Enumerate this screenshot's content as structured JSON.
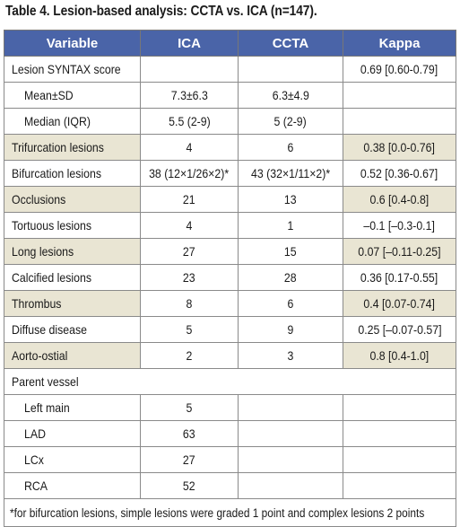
{
  "caption": "Table 4. Lesion-based analysis: CCTA vs. ICA (n=147).",
  "headers": [
    "Variable",
    "ICA",
    "CCTA",
    "Kappa"
  ],
  "rows": [
    {
      "variable": "Lesion SYNTAX score",
      "ica": "",
      "ccta": "",
      "kappa": "0.69 [0.60-0.79]",
      "indent": false,
      "shaded": false
    },
    {
      "variable": "Mean±SD",
      "ica": "7.3±6.3",
      "ccta": "6.3±4.9",
      "kappa": "",
      "indent": true,
      "shaded": false
    },
    {
      "variable": "Median (IQR)",
      "ica": "5.5 (2-9)",
      "ccta": "5 (2-9)",
      "kappa": "",
      "indent": true,
      "shaded": false
    },
    {
      "variable": "Trifurcation lesions",
      "ica": "4",
      "ccta": "6",
      "kappa": "0.38 [0.0-0.76]",
      "indent": false,
      "shaded": true
    },
    {
      "variable": "Bifurcation lesions",
      "ica": "38 (12×1/26×2)*",
      "ccta": "43 (32×1/11×2)*",
      "kappa": "0.52 [0.36-0.67]",
      "indent": false,
      "shaded": false
    },
    {
      "variable": "Occlusions",
      "ica": "21",
      "ccta": "13",
      "kappa": "0.6 [0.4-0.8]",
      "indent": false,
      "shaded": true
    },
    {
      "variable": "Tortuous lesions",
      "ica": "4",
      "ccta": "1",
      "kappa": "–0.1 [–0.3-0.1]",
      "indent": false,
      "shaded": false
    },
    {
      "variable": "Long lesions",
      "ica": "27",
      "ccta": "15",
      "kappa": "0.07 [–0.11-0.25]",
      "indent": false,
      "shaded": true
    },
    {
      "variable": "Calcified lesions",
      "ica": "23",
      "ccta": "28",
      "kappa": "0.36 [0.17-0.55]",
      "indent": false,
      "shaded": false
    },
    {
      "variable": "Thrombus",
      "ica": "8",
      "ccta": "6",
      "kappa": "0.4 [0.07-0.74]",
      "indent": false,
      "shaded": true
    },
    {
      "variable": "Diffuse disease",
      "ica": "5",
      "ccta": "9",
      "kappa": "0.25 [–0.07-0.57]",
      "indent": false,
      "shaded": false
    },
    {
      "variable": "Aorto-ostial",
      "ica": "2",
      "ccta": "3",
      "kappa": "0.8 [0.4-1.0]",
      "indent": false,
      "shaded": true
    },
    {
      "variable": "Parent vessel",
      "ica": "",
      "ccta": "",
      "kappa": "",
      "indent": false,
      "shaded": false,
      "span": true
    },
    {
      "variable": "Left main",
      "ica": "5",
      "ccta": "",
      "kappa": "",
      "indent": true,
      "shaded": false
    },
    {
      "variable": "LAD",
      "ica": "63",
      "ccta": "",
      "kappa": "",
      "indent": true,
      "shaded": false
    },
    {
      "variable": "LCx",
      "ica": "27",
      "ccta": "",
      "kappa": "",
      "indent": true,
      "shaded": false
    },
    {
      "variable": "RCA",
      "ica": "52",
      "ccta": "",
      "kappa": "",
      "indent": true,
      "shaded": false
    }
  ],
  "footnote": "*for bifurcation lesions, simple lesions were graded 1 point and complex lesions 2 points",
  "colors": {
    "header_bg": "#4a64a8",
    "shade_bg": "#e9e5d3",
    "border": "#8a8a8a"
  }
}
